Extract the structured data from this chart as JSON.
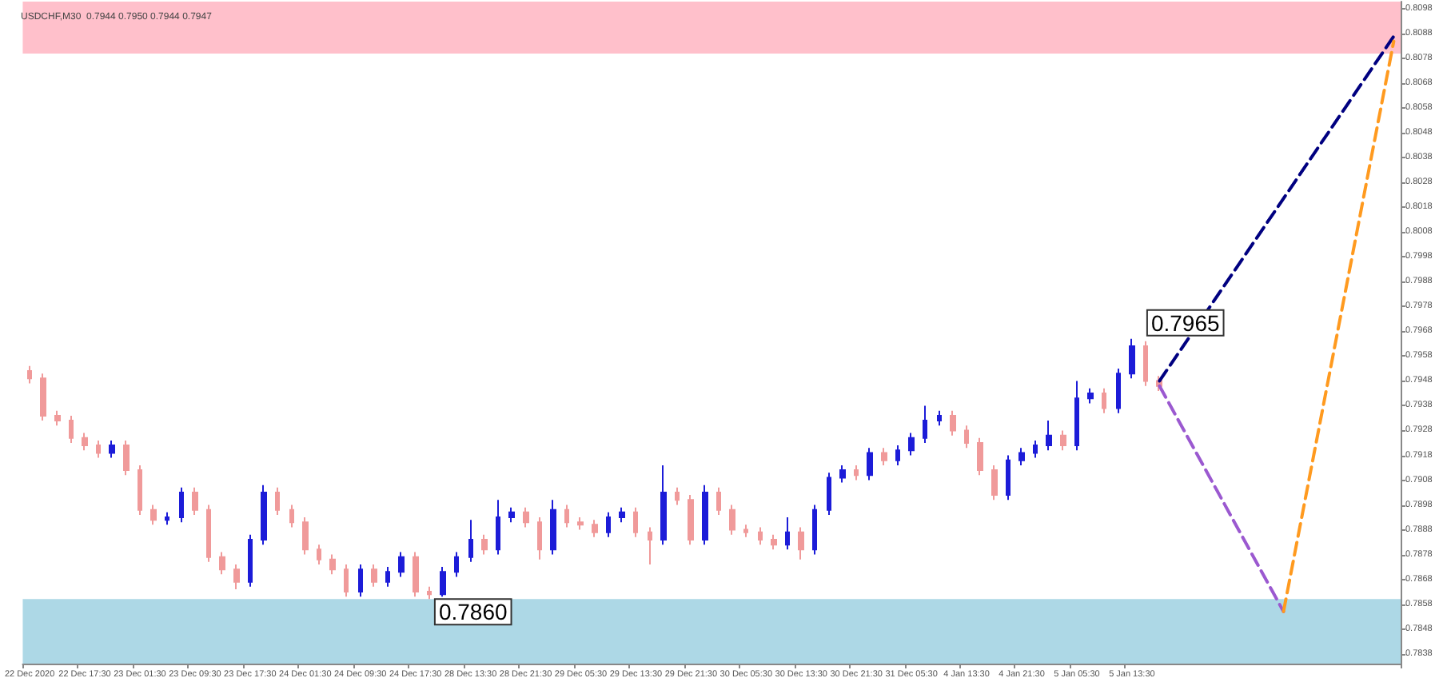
{
  "chart_data": {
    "type": "candlestick",
    "title": "USDCHF,M30  0.7944 0.7950 0.7944 0.7947",
    "categories": [
      "22 Dec 2020",
      null,
      null,
      null,
      "22 Dec 17:30",
      null,
      null,
      null,
      "23 Dec 01:30",
      null,
      null,
      null,
      "23 Dec 09:30",
      null,
      null,
      null,
      "23 Dec 17:30",
      null,
      null,
      null,
      "24 Dec 01:30",
      null,
      null,
      null,
      "24 Dec 09:30",
      null,
      null,
      null,
      "24 Dec 17:30",
      null,
      null,
      null,
      "28 Dec 13:30",
      null,
      null,
      null,
      "28 Dec 21:30",
      null,
      null,
      null,
      "29 Dec 05:30",
      null,
      null,
      null,
      "29 Dec 13:30",
      null,
      null,
      null,
      "29 Dec 21:30",
      null,
      null,
      null,
      "30 Dec 05:30",
      null,
      null,
      null,
      "30 Dec 13:30",
      null,
      null,
      null,
      "30 Dec 21:30",
      null,
      null,
      null,
      "31 Dec 05:30",
      null,
      null,
      null,
      "4 Jan 13:30",
      null,
      null,
      null,
      "4 Jan 21:30",
      null,
      null,
      null,
      "5 Jan 05:30",
      null,
      null,
      null,
      "5 Jan 13:30",
      null,
      null,
      null,
      null,
      null,
      null,
      null,
      null,
      null,
      null,
      null,
      null,
      null,
      null,
      null,
      null,
      null,
      null,
      null
    ],
    "series": [
      {
        "type": "candlestick",
        "colors": [
          "#f09a9a",
          "#f09a9a",
          "#f09a9a",
          "#f09a9a",
          "#f09a9a",
          "#f09a9a",
          "#1c1cd8",
          "#f09a9a",
          "#f09a9a",
          "#f09a9a",
          "#1c1cd8",
          "#1c1cd8",
          "#f09a9a",
          "#f09a9a",
          "#f09a9a",
          "#f09a9a",
          "#1c1cd8",
          "#1c1cd8",
          "#f09a9a",
          "#f09a9a",
          "#f09a9a",
          "#f09a9a",
          "#f09a9a",
          "#f09a9a",
          "#1c1cd8",
          "#f09a9a",
          "#1c1cd8",
          "#1c1cd8",
          "#f09a9a",
          "#f09a9a",
          "#1c1cd8",
          "#1c1cd8",
          "#1c1cd8",
          "#f09a9a",
          "#1c1cd8",
          "#1c1cd8",
          "#f09a9a",
          "#f09a9a",
          "#1c1cd8",
          "#f09a9a",
          "#f09a9a",
          "#f09a9a",
          "#1c1cd8",
          "#1c1cd8",
          "#f09a9a",
          "#f09a9a",
          "#1c1cd8",
          "#f09a9a",
          "#f09a9a",
          "#1c1cd8",
          "#f09a9a",
          "#f09a9a",
          "#f09a9a",
          "#f09a9a",
          "#f09a9a",
          "#1c1cd8",
          "#f09a9a",
          "#1c1cd8",
          "#1c1cd8",
          "#1c1cd8",
          "#f09a9a",
          "#1c1cd8",
          "#f09a9a",
          "#1c1cd8",
          "#1c1cd8",
          "#1c1cd8",
          "#1c1cd8",
          "#f09a9a",
          "#f09a9a",
          "#f09a9a",
          "#f09a9a",
          "#1c1cd8",
          "#1c1cd8",
          "#1c1cd8",
          "#1c1cd8",
          "#f09a9a",
          "#1c1cd8",
          "#1c1cd8",
          "#f09a9a",
          "#1c1cd8",
          "#1c1cd8",
          "#f09a9a",
          "#f09a9a",
          null,
          null,
          null,
          null,
          null,
          null,
          null,
          null,
          null,
          null,
          null,
          null,
          null,
          null,
          null,
          null,
          null
        ],
        "ohlc": [
          [
            0.7952,
            0.7954,
            0.7947,
            0.7949
          ],
          [
            0.7949,
            0.7951,
            0.7932,
            0.7934
          ],
          [
            0.7934,
            0.7936,
            0.793,
            0.7932
          ],
          [
            0.7932,
            0.7934,
            0.7923,
            0.7925
          ],
          [
            0.7925,
            0.7927,
            0.792,
            0.7922
          ],
          [
            0.7922,
            0.7924,
            0.7917,
            0.7919
          ],
          [
            0.7919,
            0.7924,
            0.7917,
            0.7922
          ],
          [
            0.7922,
            0.7924,
            0.791,
            0.7912
          ],
          [
            0.7912,
            0.7914,
            0.7894,
            0.7896
          ],
          [
            0.7896,
            0.7898,
            0.789,
            0.7892
          ],
          [
            0.7892,
            0.7895,
            0.789,
            0.7893
          ],
          [
            0.7893,
            0.7905,
            0.7891,
            0.7903
          ],
          [
            0.7903,
            0.7905,
            0.7894,
            0.7896
          ],
          [
            0.7896,
            0.7898,
            0.7875,
            0.7877
          ],
          [
            0.7877,
            0.7879,
            0.787,
            0.7872
          ],
          [
            0.7872,
            0.7874,
            0.7864,
            0.7867
          ],
          [
            0.7867,
            0.7886,
            0.7865,
            0.7884
          ],
          [
            0.7884,
            0.7906,
            0.7882,
            0.7903
          ],
          [
            0.7903,
            0.7905,
            0.7894,
            0.7896
          ],
          [
            0.7896,
            0.7898,
            0.7889,
            0.7891
          ],
          [
            0.7891,
            0.7893,
            0.7878,
            0.788
          ],
          [
            0.788,
            0.7882,
            0.7874,
            0.7876
          ],
          [
            0.7876,
            0.7878,
            0.787,
            0.7872
          ],
          [
            0.7872,
            0.7874,
            0.7861,
            0.7863
          ],
          [
            0.7863,
            0.7874,
            0.7861,
            0.7872
          ],
          [
            0.7872,
            0.7874,
            0.7865,
            0.7867
          ],
          [
            0.7867,
            0.7873,
            0.7865,
            0.7871
          ],
          [
            0.7871,
            0.7879,
            0.7869,
            0.7877
          ],
          [
            0.7877,
            0.7879,
            0.7861,
            0.7863
          ],
          [
            0.7863,
            0.7865,
            0.786,
            0.7862
          ],
          [
            0.7862,
            0.7873,
            0.7861,
            0.7871
          ],
          [
            0.7871,
            0.7879,
            0.7869,
            0.7877
          ],
          [
            0.7877,
            0.7892,
            0.7875,
            0.7884
          ],
          [
            0.7884,
            0.7886,
            0.7878,
            0.788
          ],
          [
            0.788,
            0.79,
            0.7878,
            0.7893
          ],
          [
            0.7893,
            0.7897,
            0.7891,
            0.7895
          ],
          [
            0.7895,
            0.7897,
            0.7889,
            0.7891
          ],
          [
            0.7891,
            0.7893,
            0.7876,
            0.788
          ],
          [
            0.788,
            0.79,
            0.7878,
            0.7896
          ],
          [
            0.7896,
            0.7898,
            0.7889,
            0.7891
          ],
          [
            0.7891,
            0.7893,
            0.7888,
            0.789
          ],
          [
            0.789,
            0.7892,
            0.7885,
            0.7887
          ],
          [
            0.7887,
            0.7895,
            0.7885,
            0.7893
          ],
          [
            0.7893,
            0.7897,
            0.7891,
            0.7895
          ],
          [
            0.7895,
            0.7897,
            0.7885,
            0.7887
          ],
          [
            0.7887,
            0.7889,
            0.7874,
            0.7884
          ],
          [
            0.7884,
            0.7914,
            0.7882,
            0.7903
          ],
          [
            0.7903,
            0.7905,
            0.7898,
            0.79
          ],
          [
            0.79,
            0.7902,
            0.7882,
            0.7884
          ],
          [
            0.7884,
            0.7906,
            0.7882,
            0.7903
          ],
          [
            0.7903,
            0.7905,
            0.7894,
            0.7896
          ],
          [
            0.7896,
            0.7898,
            0.7886,
            0.7888
          ],
          [
            0.7888,
            0.789,
            0.7885,
            0.7887
          ],
          [
            0.7887,
            0.7889,
            0.7882,
            0.7884
          ],
          [
            0.7884,
            0.7886,
            0.788,
            0.7882
          ],
          [
            0.7882,
            0.7893,
            0.788,
            0.7887
          ],
          [
            0.7887,
            0.7889,
            0.7876,
            0.788
          ],
          [
            0.788,
            0.7898,
            0.7878,
            0.7896
          ],
          [
            0.7896,
            0.7911,
            0.7894,
            0.7909
          ],
          [
            0.7909,
            0.7914,
            0.7907,
            0.7912
          ],
          [
            0.7912,
            0.7914,
            0.7908,
            0.791
          ],
          [
            0.791,
            0.7921,
            0.7908,
            0.7919
          ],
          [
            0.7919,
            0.7921,
            0.7914,
            0.7916
          ],
          [
            0.7916,
            0.7922,
            0.7914,
            0.792
          ],
          [
            0.792,
            0.7927,
            0.7918,
            0.7925
          ],
          [
            0.7925,
            0.7938,
            0.7923,
            0.7932
          ],
          [
            0.7932,
            0.7936,
            0.793,
            0.7934
          ],
          [
            0.7934,
            0.7936,
            0.7926,
            0.7928
          ],
          [
            0.7928,
            0.793,
            0.7921,
            0.7923
          ],
          [
            0.7923,
            0.7925,
            0.791,
            0.7912
          ],
          [
            0.7912,
            0.7914,
            0.79,
            0.7902
          ],
          [
            0.7902,
            0.7918,
            0.79,
            0.7916
          ],
          [
            0.7916,
            0.7921,
            0.7914,
            0.7919
          ],
          [
            0.7919,
            0.7924,
            0.7917,
            0.7922
          ],
          [
            0.7922,
            0.7932,
            0.792,
            0.7926
          ],
          [
            0.7926,
            0.7928,
            0.792,
            0.7922
          ],
          [
            0.7922,
            0.7948,
            0.792,
            0.7941
          ],
          [
            0.7941,
            0.7945,
            0.7939,
            0.7943
          ],
          [
            0.7943,
            0.7945,
            0.7935,
            0.7937
          ],
          [
            0.7937,
            0.7953,
            0.7935,
            0.7951
          ],
          [
            0.7951,
            0.7965,
            0.7949,
            0.7962
          ],
          [
            0.7962,
            0.7964,
            0.7946,
            0.7948
          ],
          [
            0.7948,
            0.795,
            0.7944,
            0.7946
          ],
          null,
          null,
          null,
          null,
          null,
          null,
          null,
          null,
          null,
          null,
          null,
          null,
          null,
          null,
          null,
          null,
          null
        ]
      },
      {
        "type": "line",
        "color": "#000080",
        "line_style": "dashed",
        "values": [
          null,
          null,
          null,
          null,
          null,
          null,
          null,
          null,
          null,
          null,
          null,
          null,
          null,
          null,
          null,
          null,
          null,
          null,
          null,
          null,
          null,
          null,
          null,
          null,
          null,
          null,
          null,
          null,
          null,
          null,
          null,
          null,
          null,
          null,
          null,
          null,
          null,
          null,
          null,
          null,
          null,
          null,
          null,
          null,
          null,
          null,
          null,
          null,
          null,
          null,
          null,
          null,
          null,
          null,
          null,
          null,
          null,
          null,
          null,
          null,
          null,
          null,
          null,
          null,
          null,
          null,
          null,
          null,
          null,
          null,
          null,
          null,
          null,
          null,
          null,
          null,
          null,
          null,
          null,
          null,
          null,
          null,
          0.7948,
          null,
          null,
          null,
          null,
          null,
          null,
          null,
          null,
          null,
          null,
          null,
          null,
          null,
          null,
          null,
          null,
          0.8087
        ]
      },
      {
        "type": "line",
        "color": "#9b59d0",
        "line_style": "dashed",
        "values": [
          null,
          null,
          null,
          null,
          null,
          null,
          null,
          null,
          null,
          null,
          null,
          null,
          null,
          null,
          null,
          null,
          null,
          null,
          null,
          null,
          null,
          null,
          null,
          null,
          null,
          null,
          null,
          null,
          null,
          null,
          null,
          null,
          null,
          null,
          null,
          null,
          null,
          null,
          null,
          null,
          null,
          null,
          null,
          null,
          null,
          null,
          null,
          null,
          null,
          null,
          null,
          null,
          null,
          null,
          null,
          null,
          null,
          null,
          null,
          null,
          null,
          null,
          null,
          null,
          null,
          null,
          null,
          null,
          null,
          null,
          null,
          null,
          null,
          null,
          null,
          null,
          null,
          null,
          null,
          null,
          null,
          null,
          0.7946,
          null,
          null,
          null,
          null,
          null,
          null,
          null,
          null,
          0.7855,
          null,
          null,
          null,
          null,
          null,
          null,
          null,
          null
        ]
      },
      {
        "type": "line",
        "color": "#ff9a1f",
        "line_style": "dashed",
        "values": [
          null,
          null,
          null,
          null,
          null,
          null,
          null,
          null,
          null,
          null,
          null,
          null,
          null,
          null,
          null,
          null,
          null,
          null,
          null,
          null,
          null,
          null,
          null,
          null,
          null,
          null,
          null,
          null,
          null,
          null,
          null,
          null,
          null,
          null,
          null,
          null,
          null,
          null,
          null,
          null,
          null,
          null,
          null,
          null,
          null,
          null,
          null,
          null,
          null,
          null,
          null,
          null,
          null,
          null,
          null,
          null,
          null,
          null,
          null,
          null,
          null,
          null,
          null,
          null,
          null,
          null,
          null,
          null,
          null,
          null,
          null,
          null,
          null,
          null,
          null,
          null,
          null,
          null,
          null,
          null,
          null,
          null,
          null,
          null,
          null,
          null,
          null,
          null,
          null,
          null,
          null,
          0.7855,
          null,
          null,
          null,
          null,
          null,
          null,
          null,
          0.8085
        ]
      }
    ],
    "bands": [
      {
        "axis": "y",
        "from": 0.808,
        "to": 0.8101,
        "color": "#ffc0cb"
      },
      {
        "axis": "y",
        "from": 0.7834,
        "to": 0.786,
        "color": "#add8e6"
      }
    ],
    "annotations": [
      {
        "text": "0.7860",
        "y": 0.786
      },
      "0.7965"
    ],
    "ylim": [
      0.7834,
      0.8101
    ],
    "yticks": [
      0.7838,
      0.7848,
      0.7858,
      0.7868,
      0.7878,
      0.7888,
      0.7898,
      0.7908,
      0.7918,
      0.7928,
      0.7938,
      0.7948,
      0.7958,
      0.7968,
      0.7978,
      0.7988,
      0.7998,
      0.8008,
      0.8018,
      0.8028,
      0.8038,
      0.8048,
      0.8058,
      0.8068,
      0.8078,
      0.8088,
      0.8098
    ],
    "grid": false
  }
}
